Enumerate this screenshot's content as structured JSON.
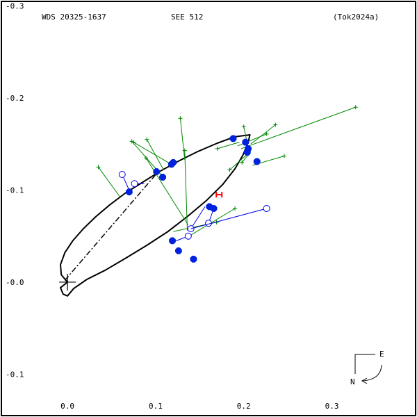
{
  "header": {
    "wds": "WDS 20325-1637",
    "name": "SEE 512",
    "ref": "(Tok2024a)"
  },
  "compass": {
    "east": "E",
    "north": "N"
  },
  "chart_data": {
    "type": "scatter",
    "title": "",
    "xlabel": "",
    "ylabel": "",
    "xlim": [
      -0.075,
      0.395
    ],
    "ylim": [
      -0.145,
      0.305
    ],
    "x_ticks": [
      {
        "v": 0.0,
        "label": "0.0"
      },
      {
        "v": 0.1,
        "label": "0.1"
      },
      {
        "v": 0.2,
        "label": "0.2"
      },
      {
        "v": 0.3,
        "label": "0.3"
      }
    ],
    "y_ticks": [
      {
        "v": 0.3,
        "label": "-0.3"
      },
      {
        "v": 0.2,
        "label": "-0.2"
      },
      {
        "v": 0.1,
        "label": "-0.1"
      },
      {
        "v": 0.0,
        "label": "-0.0"
      },
      {
        "v": -0.1,
        "label": "-0.1"
      }
    ],
    "orbit": {
      "points": [
        [
          0.0,
          0.0
        ],
        [
          -0.007,
          0.008
        ],
        [
          -0.008,
          0.019
        ],
        [
          -0.003,
          0.032
        ],
        [
          0.006,
          0.045
        ],
        [
          0.018,
          0.058
        ],
        [
          0.032,
          0.071
        ],
        [
          0.048,
          0.084
        ],
        [
          0.066,
          0.097
        ],
        [
          0.086,
          0.109
        ],
        [
          0.106,
          0.121
        ],
        [
          0.127,
          0.132
        ],
        [
          0.148,
          0.142
        ],
        [
          0.17,
          0.151
        ],
        [
          0.19,
          0.158
        ],
        [
          0.207,
          0.16
        ],
        [
          0.205,
          0.152
        ],
        [
          0.199,
          0.138
        ],
        [
          0.19,
          0.123
        ],
        [
          0.176,
          0.106
        ],
        [
          0.158,
          0.089
        ],
        [
          0.137,
          0.072
        ],
        [
          0.114,
          0.055
        ],
        [
          0.09,
          0.04
        ],
        [
          0.066,
          0.026
        ],
        [
          0.043,
          0.013
        ],
        [
          0.022,
          0.003
        ],
        [
          0.007,
          -0.007
        ],
        [
          0.0,
          -0.015
        ],
        [
          -0.005,
          -0.013
        ],
        [
          -0.008,
          -0.006
        ],
        [
          0.0,
          0.0
        ]
      ],
      "apsides_line": [
        [
          -0.003,
          0.002
        ],
        [
          0.103,
          0.12
        ]
      ]
    },
    "primary": [
      0.0,
      0.0
    ],
    "predicted": [
      0.172,
      0.095
    ],
    "micrometric": [
      {
        "obs": [
          0.035,
          0.125
        ],
        "orb": [
          0.06,
          0.092
        ]
      },
      {
        "obs": [
          0.073,
          0.153
        ],
        "orb": [
          0.106,
          0.117
        ]
      },
      {
        "obs": [
          0.075,
          0.152
        ],
        "orb": [
          0.116,
          0.129
        ]
      },
      {
        "obs": [
          0.09,
          0.155
        ],
        "orb": [
          0.109,
          0.122
        ]
      },
      {
        "obs": [
          0.128,
          0.178
        ],
        "orb": [
          0.133,
          0.133
        ]
      },
      {
        "obs": [
          0.133,
          0.143
        ],
        "orb": [
          0.136,
          0.056
        ]
      },
      {
        "obs": [
          0.089,
          0.135
        ],
        "orb": [
          0.137,
          0.062
        ]
      },
      {
        "obs": [
          0.169,
          0.065
        ],
        "orb": [
          0.12,
          0.055
        ]
      },
      {
        "obs": [
          0.19,
          0.08
        ],
        "orb": [
          0.138,
          0.05
        ]
      },
      {
        "obs": [
          0.327,
          0.19
        ],
        "orb": [
          0.197,
          0.145
        ]
      },
      {
        "obs": [
          0.236,
          0.171
        ],
        "orb": [
          0.208,
          0.15
        ]
      },
      {
        "obs": [
          0.226,
          0.161
        ],
        "orb": [
          0.193,
          0.148
        ]
      },
      {
        "obs": [
          0.2,
          0.169
        ],
        "orb": [
          0.205,
          0.146
        ]
      },
      {
        "obs": [
          0.246,
          0.137
        ],
        "orb": [
          0.21,
          0.127
        ]
      },
      {
        "obs": [
          0.17,
          0.145
        ],
        "orb": [
          0.195,
          0.152
        ]
      },
      {
        "obs": [
          0.198,
          0.13
        ],
        "orb": [
          0.208,
          0.142
        ]
      },
      {
        "obs": [
          0.184,
          0.122
        ],
        "orb": [
          0.203,
          0.138
        ]
      }
    ],
    "interferometric": [
      {
        "obs": [
          0.062,
          0.117
        ],
        "orb": [
          0.07,
          0.1
        ]
      },
      {
        "obs": [
          0.076,
          0.107
        ],
        "orb": [
          0.087,
          0.107
        ]
      },
      {
        "obs": [
          0.14,
          0.058
        ],
        "orb": [
          0.156,
          0.082
        ]
      },
      {
        "obs": [
          0.16,
          0.064
        ],
        "orb": [
          0.166,
          0.08
        ]
      },
      {
        "obs": [
          0.226,
          0.08
        ],
        "orb": [
          0.14,
          0.058
        ]
      },
      {
        "obs": [
          0.137,
          0.05
        ],
        "orb": [
          0.121,
          0.044
        ]
      }
    ],
    "filled": [
      [
        0.07,
        0.098
      ],
      [
        0.101,
        0.12
      ],
      [
        0.108,
        0.114
      ],
      [
        0.118,
        0.128
      ],
      [
        0.12,
        0.13
      ],
      [
        0.188,
        0.156
      ],
      [
        0.202,
        0.152
      ],
      [
        0.204,
        0.141
      ],
      [
        0.205,
        0.145
      ],
      [
        0.215,
        0.131
      ],
      [
        0.161,
        0.082
      ],
      [
        0.166,
        0.08
      ],
      [
        0.119,
        0.045
      ],
      [
        0.126,
        0.034
      ],
      [
        0.143,
        0.025
      ]
    ],
    "colors": {
      "orbit": "#000000",
      "micrometric": "#008800",
      "interferometric": "#0000ee",
      "filled": "#0022dd",
      "predicted": "#ff0000"
    }
  }
}
